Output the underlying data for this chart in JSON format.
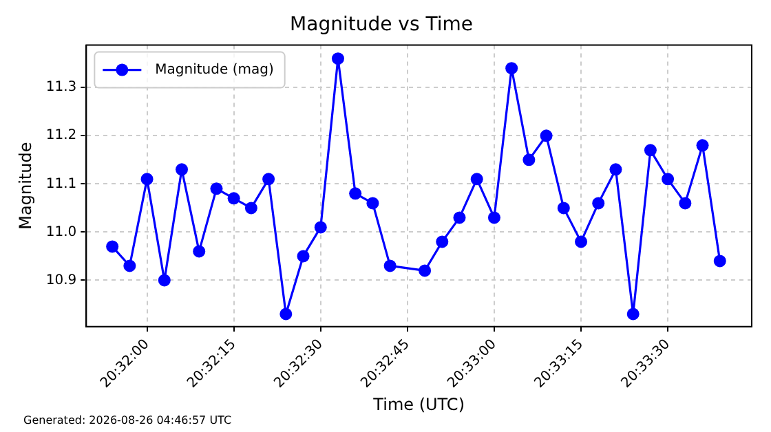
{
  "chart_data": {
    "type": "line",
    "title": "Magnitude vs Time",
    "xlabel": "Time (UTC)",
    "ylabel": "Magnitude",
    "annotations": [
      "Generated: 2026-08-26 04:46:57 UTC"
    ],
    "x": [
      20.531667,
      20.5325,
      20.533333,
      20.534167,
      20.535,
      20.535833,
      20.536667,
      20.5375,
      20.538333,
      20.539167,
      20.54,
      20.540833,
      20.541667,
      20.5425,
      20.543333,
      20.544167,
      20.545,
      20.546667,
      20.5475,
      20.548333,
      20.549167,
      20.55,
      20.550833,
      20.551667,
      20.5525,
      20.553333,
      20.554167,
      20.555,
      20.555833,
      20.556667,
      20.5575,
      20.558333,
      20.559167,
      20.56,
      20.560833
    ],
    "series": [
      {
        "name": "Magnitude (mag)",
        "color": "#0000ff",
        "values": [
          10.97,
          10.93,
          11.11,
          10.9,
          11.13,
          10.96,
          11.09,
          11.07,
          11.05,
          11.11,
          10.83,
          10.95,
          11.01,
          11.36,
          11.08,
          11.06,
          10.93,
          10.92,
          10.98,
          11.03,
          11.11,
          11.03,
          11.34,
          11.15,
          11.2,
          11.05,
          10.98,
          11.06,
          11.13,
          10.83,
          11.17,
          11.11,
          11.06,
          11.18,
          10.94
        ]
      }
    ],
    "xlim": [
      20.530417,
      20.562361
    ],
    "xticks": [
      {
        "value": 20.533333,
        "label": "20:32:00"
      },
      {
        "value": 20.5375,
        "label": "20:32:15"
      },
      {
        "value": 20.541667,
        "label": "20:32:30"
      },
      {
        "value": 20.545833,
        "label": "20:32:45"
      },
      {
        "value": 20.55,
        "label": "20:33:00"
      },
      {
        "value": 20.554167,
        "label": "20:33:15"
      },
      {
        "value": 20.558333,
        "label": "20:33:30"
      }
    ],
    "ylim": [
      10.804,
      11.388
    ],
    "yticks": [
      {
        "value": 10.9,
        "label": "10.9"
      },
      {
        "value": 11.0,
        "label": "11.0"
      },
      {
        "value": 11.1,
        "label": "11.1"
      },
      {
        "value": 11.2,
        "label": "11.2"
      },
      {
        "value": 11.3,
        "label": "11.3"
      }
    ],
    "grid": true,
    "legend": "top left",
    "marker": "circle",
    "line_style": "solid"
  }
}
